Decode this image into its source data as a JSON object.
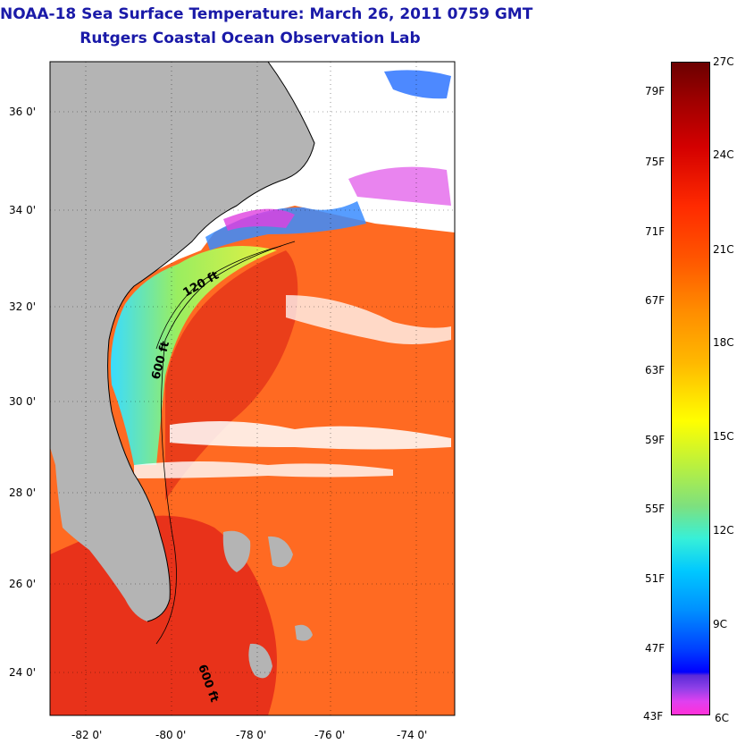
{
  "header": {
    "title": "NOAA-18 Sea Surface Temperature:  March 26, 2011 0759 GMT",
    "subtitle": "Rutgers Coastal Ocean Observation Lab"
  },
  "map": {
    "lat_labels": [
      "36 0'",
      "34 0'",
      "32 0'",
      "30 0'",
      "28 0'",
      "26 0'",
      "24 0'"
    ],
    "lon_labels": [
      "-82 0'",
      "-80 0'",
      "-78 0'",
      "-76 0'",
      "-74 0'"
    ],
    "contour_labels": [
      "120 ft",
      "600 ft",
      "600 ft"
    ],
    "colors": {
      "land": "#b4b4b4",
      "cloud": "#ffffff",
      "warm": "#ff5a1e",
      "gulfstream": "#e8321a",
      "cool": "#b7f040",
      "cold": "#3adcff"
    }
  },
  "colorbar": {
    "fahrenheit_labels": [
      "79F",
      "75F",
      "71F",
      "67F",
      "63F",
      "59F",
      "55F",
      "51F",
      "47F",
      "43F"
    ],
    "celsius_labels": [
      "27C",
      "24C",
      "21C",
      "18C",
      "15C",
      "12C",
      "9C",
      "6C"
    ],
    "range_f": [
      43,
      81
    ],
    "range_c": [
      6,
      27
    ]
  }
}
